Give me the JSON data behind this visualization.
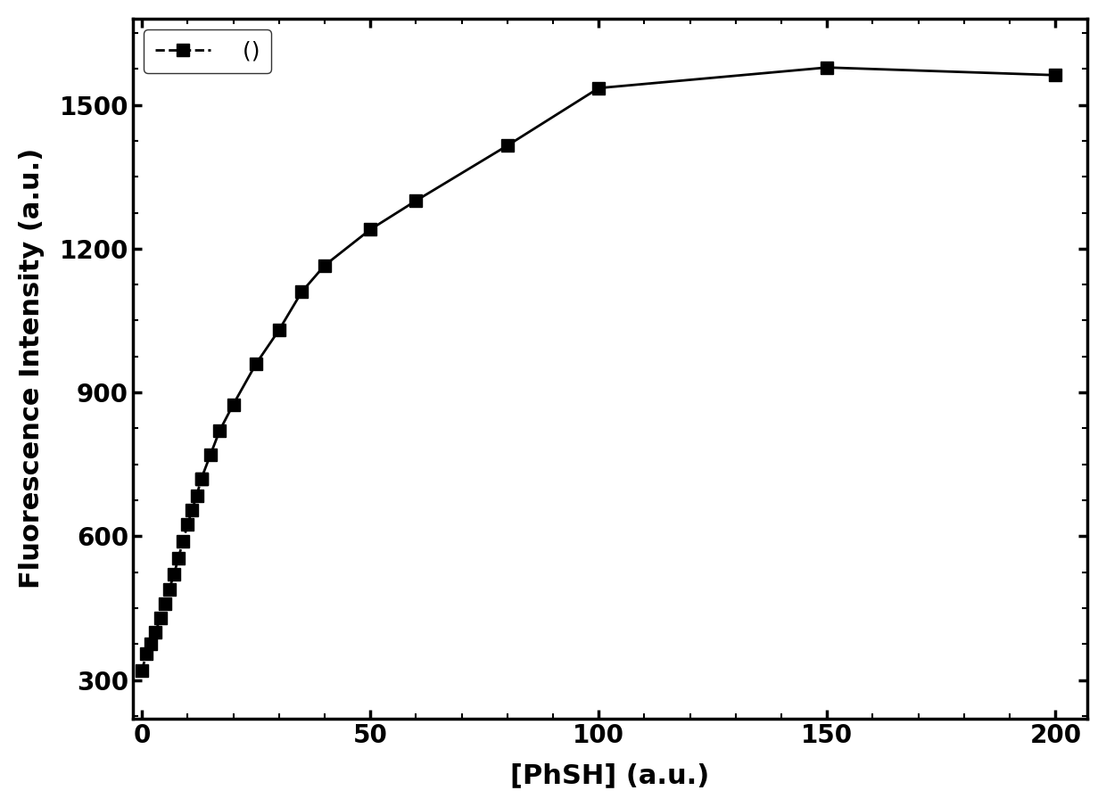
{
  "x": [
    0,
    1,
    2,
    3,
    4,
    5,
    6,
    7,
    8,
    9,
    10,
    11,
    12,
    13,
    15,
    17,
    20,
    25,
    30,
    35,
    40,
    50,
    60,
    80,
    100,
    150,
    200
  ],
  "y": [
    320,
    355,
    375,
    400,
    430,
    460,
    490,
    520,
    555,
    590,
    625,
    655,
    685,
    720,
    770,
    820,
    875,
    960,
    1030,
    1110,
    1165,
    1240,
    1300,
    1415,
    1535,
    1578,
    1562
  ],
  "dashed_cutoff_index": 13,
  "xlabel": "[PhSH] (a.u.)",
  "ylabel": "Fluorescence Intensity (a.u.)",
  "legend_label": "  ()",
  "xlim": [
    -2,
    207
  ],
  "ylim": [
    220,
    1680
  ],
  "xticks": [
    0,
    50,
    100,
    150,
    200
  ],
  "yticks": [
    300,
    600,
    900,
    1200,
    1500
  ],
  "line_color": "#000000",
  "marker": "s",
  "markersize": 10,
  "linewidth": 2.0,
  "background_color": "#ffffff",
  "label_fontsize": 22,
  "tick_fontsize": 20,
  "legend_fontsize": 18
}
